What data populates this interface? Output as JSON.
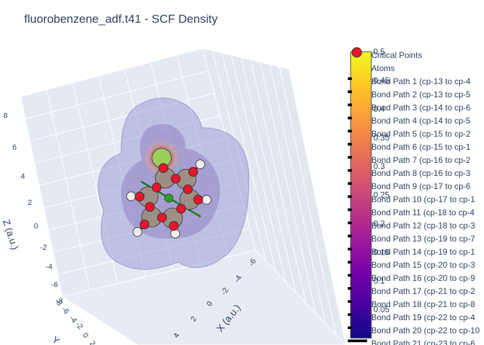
{
  "chart_data": {
    "type": "scatter3d",
    "title": "fluorobenzene_adf.t41 - SCF Density",
    "axes": {
      "x": {
        "label": "X (a.u.)",
        "ticks": [
          "-6",
          "-4",
          "-2",
          "0",
          "2",
          "4"
        ]
      },
      "y": {
        "label": "Y",
        "ticks": [
          "-8",
          "-6",
          "-4",
          "-2",
          "0",
          "2"
        ]
      },
      "z": {
        "label": "Z (a.u.)",
        "ticks": [
          "8",
          "6",
          "4",
          "2",
          "0",
          "-2",
          "-4",
          "-6",
          "-8"
        ]
      }
    },
    "colorbar": {
      "range": [
        0,
        0.5
      ],
      "ticks": [
        "0.5",
        "0.45",
        "0.4",
        "0.35",
        "0.3",
        "0.25",
        "0.2",
        "0.15",
        "0.1",
        "0.05"
      ],
      "colorscale": [
        "#0d0887",
        "#46039f",
        "#7201a8",
        "#9c179e",
        "#bd3786",
        "#d8576b",
        "#ed7953",
        "#fb9f3a",
        "#fdca26",
        "#f0f921"
      ]
    },
    "legend": [
      "Critical Points",
      "Atoms",
      "Bond Path 1 (cp-13 to cp-4",
      "Bond Path 2 (cp-13 to cp-5",
      "Bond Path 3 (cp-14 to cp-6",
      "Bond Path 4 (cp-14 to cp-5",
      "Bond Path 5 (cp-15 to cp-2",
      "Bond Path 6 (cp-15 to cp-1",
      "Bond Path 7 (cp-16 to cp-2",
      "Bond Path 8 (cp-16 to cp-3",
      "Bond Path 9 (cp-17 to cp-6",
      "Bond Path 10 (cp-17 to cp-1",
      "Bond Path 11 (cp-18 to cp-4",
      "Bond Path 12 (cp-18 to cp-3",
      "Bond Path 13 (cp-19 to cp-7",
      "Bond Path 14 (cp-19 to cp-1",
      "Bond Path 15 (cp-20 to cp-3",
      "Bond Path 16 (cp-20 to cp-9",
      "Bond Path 17 (cp-21 to cp-2",
      "Bond Path 18 (cp-21 to cp-8",
      "Bond Path 19 (cp-22 to cp-4",
      "Bond Path 20 (cp-22 to cp-10",
      "Bond Path 21 (cp-23 to cp-6"
    ],
    "atoms": [
      {
        "element": "F",
        "x": 0.0,
        "y": 0.0,
        "z": 5.1,
        "color": "#9acd5a"
      },
      {
        "element": "C",
        "x": 0.0,
        "y": 0.0,
        "z": 2.5,
        "color": "#9d8f85"
      },
      {
        "element": "C",
        "x": 2.2,
        "y": 0.0,
        "z": 1.2,
        "color": "#9d8f85"
      },
      {
        "element": "C",
        "x": 2.2,
        "y": 0.0,
        "z": -1.4,
        "color": "#9d8f85"
      },
      {
        "element": "C",
        "x": 0.0,
        "y": 0.0,
        "z": -2.7,
        "color": "#9d8f85"
      },
      {
        "element": "C",
        "x": -2.2,
        "y": 0.0,
        "z": -1.4,
        "color": "#9d8f85"
      },
      {
        "element": "C",
        "x": -2.2,
        "y": 0.0,
        "z": 1.2,
        "color": "#9d8f85"
      },
      {
        "element": "H",
        "x": 4.0,
        "y": 0.0,
        "z": 2.2,
        "color": "#f2ecec"
      },
      {
        "element": "H",
        "x": 4.0,
        "y": 0.0,
        "z": -2.4,
        "color": "#f2ecec"
      },
      {
        "element": "H",
        "x": 0.0,
        "y": 0.0,
        "z": -4.7,
        "color": "#f2ecec"
      },
      {
        "element": "H",
        "x": -4.0,
        "y": 0.0,
        "z": -2.4,
        "color": "#f2ecec"
      },
      {
        "element": "H",
        "x": -4.0,
        "y": 0.0,
        "z": 2.2,
        "color": "#f2ecec"
      }
    ],
    "ring_critical_point": {
      "x": 0.0,
      "y": 0.0,
      "z": -0.1,
      "color": "#2ca02c"
    },
    "bonds": [
      [
        0,
        1
      ],
      [
        1,
        2
      ],
      [
        2,
        3
      ],
      [
        3,
        4
      ],
      [
        4,
        5
      ],
      [
        5,
        6
      ],
      [
        6,
        1
      ],
      [
        2,
        7
      ],
      [
        3,
        8
      ],
      [
        4,
        9
      ],
      [
        5,
        10
      ],
      [
        6,
        11
      ]
    ],
    "critical_point_color": "#e8162b",
    "ring_axis_color": "#1a7a1a",
    "density_surface_color": "#8a8fd0"
  }
}
